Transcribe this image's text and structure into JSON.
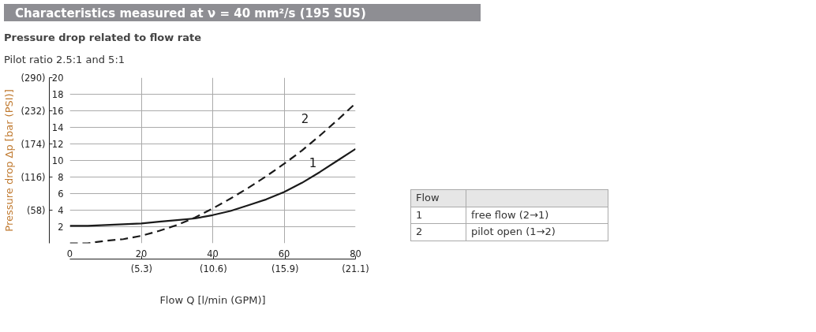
{
  "chart_data": {
    "type": "line",
    "title": "Characteristics measured at ν = 40 mm²/s (195 SUS)",
    "subtitle": "Pressure drop related to flow rate",
    "xlabel": "Flow Q [l/min (GPM)]",
    "y2label": "Pressure drop Δp [bar (PSI)]",
    "annotations": [
      "Pilot ratio 2.5:1  and 5:1",
      "Flow",
      "1",
      "free flow (2→1)",
      "2",
      "pilot open (1→2)"
    ],
    "x": [
      0,
      5,
      10,
      15,
      20,
      25,
      30,
      35,
      40,
      45,
      50,
      55,
      60,
      65,
      70,
      75,
      80
    ],
    "series": [
      {
        "name": "1",
        "color": "#1a1a1a",
        "line_style": "solid",
        "values": [
          2.1,
          2.1,
          2.2,
          2.3,
          2.4,
          2.6,
          2.8,
          3.0,
          3.4,
          3.9,
          4.6,
          5.3,
          6.2,
          7.3,
          8.6,
          10.0,
          11.4
        ]
      },
      {
        "name": "2",
        "color": "#1a1a1a",
        "line_style": "dashed",
        "values": [
          0.0,
          0.0,
          0.3,
          0.5,
          0.9,
          1.5,
          2.2,
          3.1,
          4.2,
          5.4,
          6.7,
          8.1,
          9.6,
          11.2,
          13.0,
          14.9,
          16.9
        ]
      }
    ],
    "xlim": [
      0,
      80
    ],
    "xticks": [
      0,
      20,
      40,
      60,
      80
    ],
    "ylim": [
      0,
      20
    ],
    "yticks": [
      2,
      4,
      6,
      8,
      10,
      12,
      14,
      16,
      18,
      20
    ],
    "y2lim": [
      0,
      290
    ],
    "y2ticks": [
      {
        "value": 58,
        "label": "(58)"
      },
      {
        "value": 116,
        "label": "(116)"
      },
      {
        "value": 174,
        "label": "(174)"
      },
      {
        "value": 232,
        "label": "(232)"
      },
      {
        "value": 290,
        "label": "(290)"
      }
    ],
    "x2lim": [
      0,
      21.1
    ],
    "x2ticks": [
      {
        "value": 5.3,
        "label": "(5.3)"
      },
      {
        "value": 10.6,
        "label": "(10.6)"
      },
      {
        "value": 15.9,
        "label": "(15.9)"
      },
      {
        "value": 21.1,
        "label": "(21.1)"
      }
    ],
    "grid": true,
    "marker": "none"
  }
}
